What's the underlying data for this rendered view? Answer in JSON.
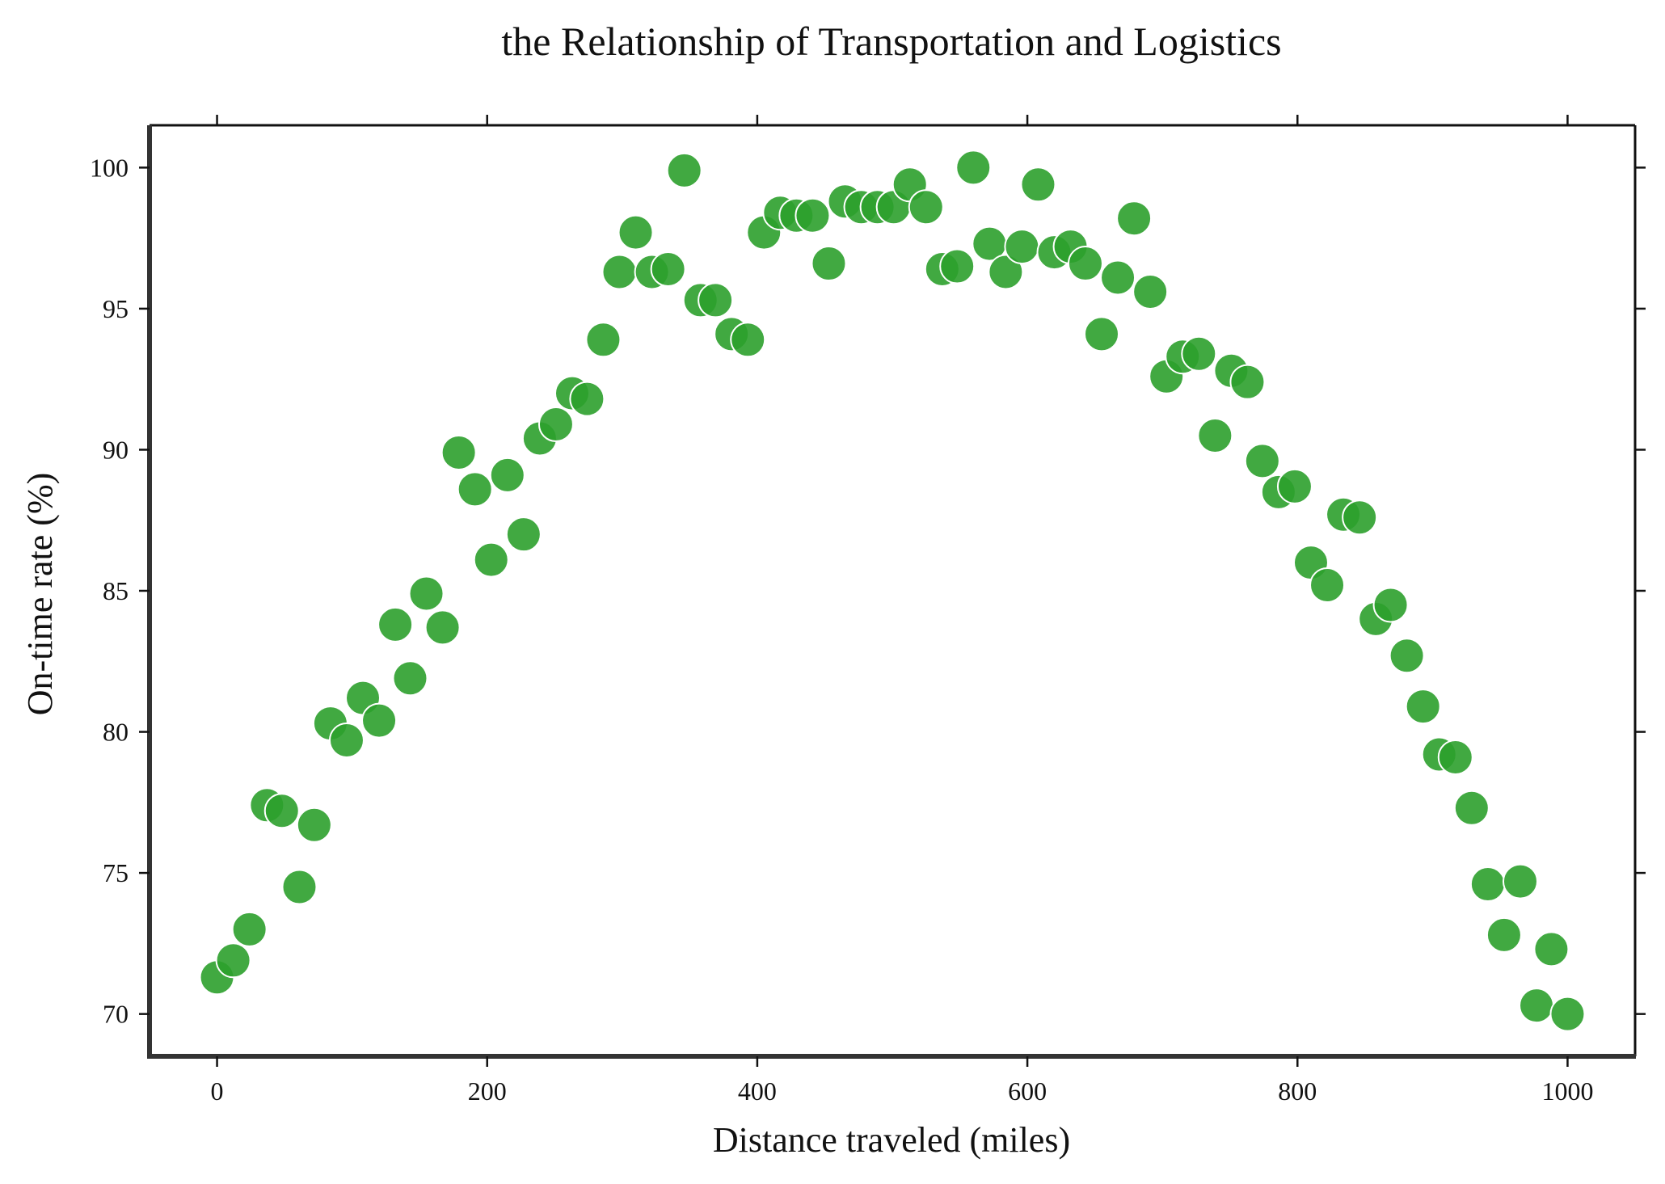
{
  "chart_data": {
    "type": "scatter",
    "title": "the Relationship of Transportation and Logistics",
    "xlabel": "Distance traveled (miles)",
    "ylabel": "On-time rate (%)",
    "xlim": [
      -50,
      1050
    ],
    "ylim": [
      68.5,
      101.5
    ],
    "xticks": [
      0,
      200,
      400,
      600,
      800,
      1000
    ],
    "yticks": [
      70,
      75,
      80,
      85,
      90,
      95,
      100
    ],
    "grid": false,
    "legend": "none",
    "marker_color": "#2ca02c",
    "marker_edge_color": "#ffffff",
    "points": [
      {
        "x": 0,
        "y": 71.3
      },
      {
        "x": 12,
        "y": 71.9
      },
      {
        "x": 24,
        "y": 73.0
      },
      {
        "x": 37,
        "y": 77.4
      },
      {
        "x": 48,
        "y": 77.2
      },
      {
        "x": 61,
        "y": 74.5
      },
      {
        "x": 72,
        "y": 76.7
      },
      {
        "x": 84,
        "y": 80.3
      },
      {
        "x": 96,
        "y": 79.7
      },
      {
        "x": 108,
        "y": 81.2
      },
      {
        "x": 120,
        "y": 80.4
      },
      {
        "x": 132,
        "y": 83.8
      },
      {
        "x": 143,
        "y": 81.9
      },
      {
        "x": 155,
        "y": 84.9
      },
      {
        "x": 167,
        "y": 83.7
      },
      {
        "x": 179,
        "y": 89.9
      },
      {
        "x": 191,
        "y": 88.6
      },
      {
        "x": 203,
        "y": 86.1
      },
      {
        "x": 215,
        "y": 89.1
      },
      {
        "x": 227,
        "y": 87.0
      },
      {
        "x": 239,
        "y": 90.4
      },
      {
        "x": 251,
        "y": 90.9
      },
      {
        "x": 263,
        "y": 92.0
      },
      {
        "x": 274,
        "y": 91.8
      },
      {
        "x": 286,
        "y": 93.9
      },
      {
        "x": 298,
        "y": 96.3
      },
      {
        "x": 310,
        "y": 97.7
      },
      {
        "x": 322,
        "y": 96.3
      },
      {
        "x": 334,
        "y": 96.4
      },
      {
        "x": 346,
        "y": 99.9
      },
      {
        "x": 358,
        "y": 95.3
      },
      {
        "x": 369,
        "y": 95.3
      },
      {
        "x": 381,
        "y": 94.1
      },
      {
        "x": 393,
        "y": 93.9
      },
      {
        "x": 405,
        "y": 97.7
      },
      {
        "x": 417,
        "y": 98.4
      },
      {
        "x": 429,
        "y": 98.3
      },
      {
        "x": 441,
        "y": 98.3
      },
      {
        "x": 453,
        "y": 96.6
      },
      {
        "x": 465,
        "y": 98.8
      },
      {
        "x": 477,
        "y": 98.6
      },
      {
        "x": 489,
        "y": 98.6
      },
      {
        "x": 501,
        "y": 98.6
      },
      {
        "x": 513,
        "y": 99.4
      },
      {
        "x": 525,
        "y": 98.6
      },
      {
        "x": 537,
        "y": 96.4
      },
      {
        "x": 548,
        "y": 96.5
      },
      {
        "x": 560,
        "y": 100.0
      },
      {
        "x": 572,
        "y": 97.3
      },
      {
        "x": 584,
        "y": 96.3
      },
      {
        "x": 596,
        "y": 97.2
      },
      {
        "x": 608,
        "y": 99.4
      },
      {
        "x": 620,
        "y": 97.0
      },
      {
        "x": 632,
        "y": 97.2
      },
      {
        "x": 643,
        "y": 96.6
      },
      {
        "x": 655,
        "y": 94.1
      },
      {
        "x": 667,
        "y": 96.1
      },
      {
        "x": 679,
        "y": 98.2
      },
      {
        "x": 691,
        "y": 95.6
      },
      {
        "x": 703,
        "y": 92.6
      },
      {
        "x": 715,
        "y": 93.3
      },
      {
        "x": 727,
        "y": 93.4
      },
      {
        "x": 739,
        "y": 90.5
      },
      {
        "x": 751,
        "y": 92.8
      },
      {
        "x": 763,
        "y": 92.4
      },
      {
        "x": 774,
        "y": 89.6
      },
      {
        "x": 786,
        "y": 88.5
      },
      {
        "x": 798,
        "y": 88.7
      },
      {
        "x": 810,
        "y": 86.0
      },
      {
        "x": 822,
        "y": 85.2
      },
      {
        "x": 834,
        "y": 87.7
      },
      {
        "x": 846,
        "y": 87.6
      },
      {
        "x": 858,
        "y": 84.0
      },
      {
        "x": 869,
        "y": 84.5
      },
      {
        "x": 881,
        "y": 82.7
      },
      {
        "x": 893,
        "y": 80.9
      },
      {
        "x": 905,
        "y": 79.2
      },
      {
        "x": 917,
        "y": 79.1
      },
      {
        "x": 929,
        "y": 77.3
      },
      {
        "x": 941,
        "y": 74.6
      },
      {
        "x": 953,
        "y": 72.8
      },
      {
        "x": 965,
        "y": 74.7
      },
      {
        "x": 977,
        "y": 70.3
      },
      {
        "x": 988,
        "y": 72.3
      },
      {
        "x": 1000,
        "y": 70.0
      }
    ]
  }
}
